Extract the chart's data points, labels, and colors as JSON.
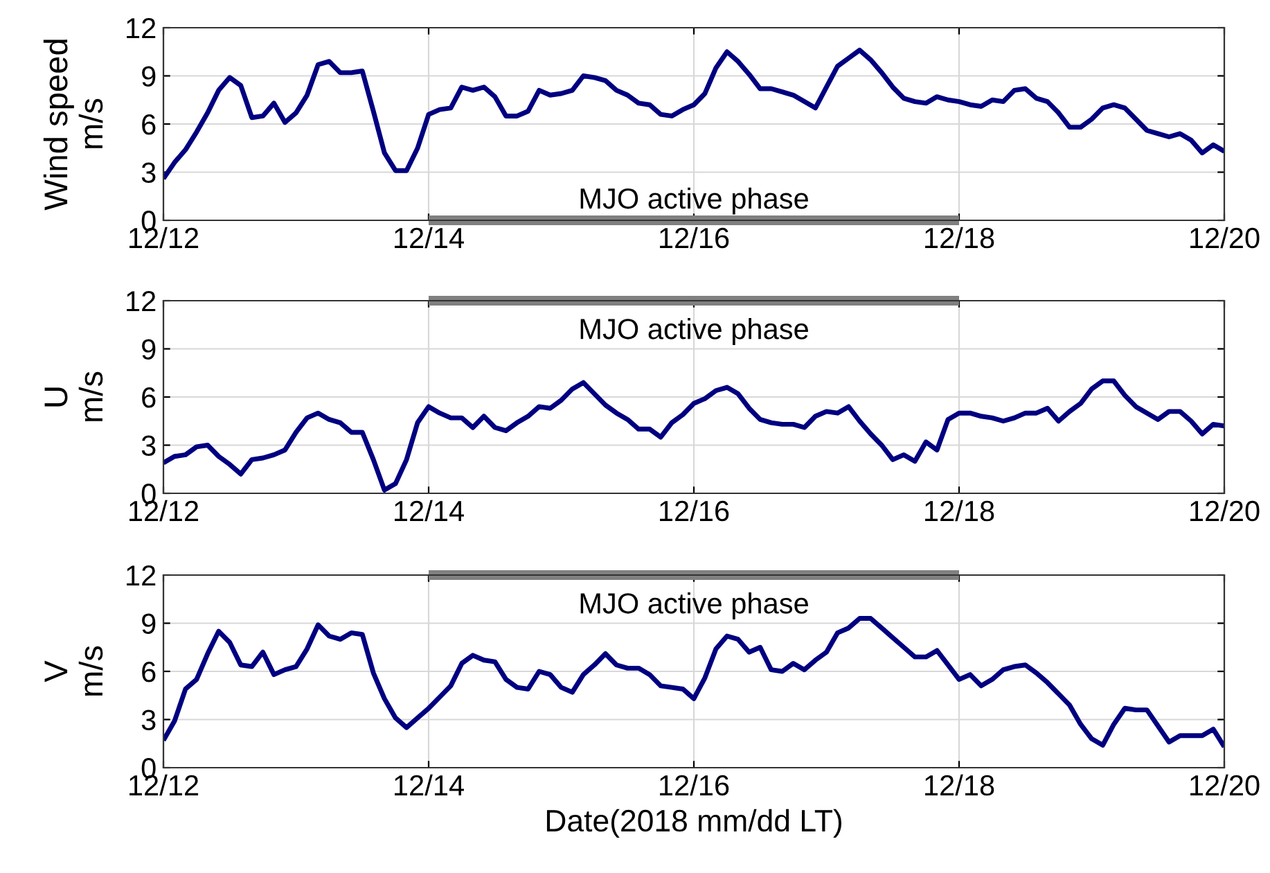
{
  "chart_data": [
    {
      "type": "line",
      "ylabel": "Wind speed\nm/s",
      "x": [
        "2018-12-12T00:00",
        "2018-12-12T02:00",
        "2018-12-12T04:00",
        "2018-12-12T06:00",
        "2018-12-12T08:00",
        "2018-12-12T10:00",
        "2018-12-12T12:00",
        "2018-12-12T14:00",
        "2018-12-12T16:00",
        "2018-12-12T18:00",
        "2018-12-12T20:00",
        "2018-12-12T22:00",
        "2018-12-13T00:00",
        "2018-12-13T02:00",
        "2018-12-13T04:00",
        "2018-12-13T06:00",
        "2018-12-13T08:00",
        "2018-12-13T10:00",
        "2018-12-13T12:00",
        "2018-12-13T14:00",
        "2018-12-13T16:00",
        "2018-12-13T18:00",
        "2018-12-13T20:00",
        "2018-12-13T22:00",
        "2018-12-14T00:00",
        "2018-12-14T02:00",
        "2018-12-14T04:00",
        "2018-12-14T06:00",
        "2018-12-14T08:00",
        "2018-12-14T10:00",
        "2018-12-14T12:00",
        "2018-12-14T14:00",
        "2018-12-14T16:00",
        "2018-12-14T18:00",
        "2018-12-14T20:00",
        "2018-12-14T22:00",
        "2018-12-15T00:00",
        "2018-12-15T02:00",
        "2018-12-15T04:00",
        "2018-12-15T06:00",
        "2018-12-15T08:00",
        "2018-12-15T10:00",
        "2018-12-15T12:00",
        "2018-12-15T14:00",
        "2018-12-15T16:00",
        "2018-12-15T18:00",
        "2018-12-15T20:00",
        "2018-12-15T22:00",
        "2018-12-16T00:00",
        "2018-12-16T02:00",
        "2018-12-16T04:00",
        "2018-12-16T06:00",
        "2018-12-16T08:00",
        "2018-12-16T10:00",
        "2018-12-16T12:00",
        "2018-12-16T14:00",
        "2018-12-16T16:00",
        "2018-12-16T18:00",
        "2018-12-16T20:00",
        "2018-12-16T22:00",
        "2018-12-17T00:00",
        "2018-12-17T02:00",
        "2018-12-17T04:00",
        "2018-12-17T06:00",
        "2018-12-17T08:00",
        "2018-12-17T10:00",
        "2018-12-17T12:00",
        "2018-12-17T14:00",
        "2018-12-17T16:00",
        "2018-12-17T18:00",
        "2018-12-17T20:00",
        "2018-12-17T22:00",
        "2018-12-18T00:00",
        "2018-12-18T02:00",
        "2018-12-18T04:00",
        "2018-12-18T06:00",
        "2018-12-18T08:00",
        "2018-12-18T10:00",
        "2018-12-18T12:00",
        "2018-12-18T14:00",
        "2018-12-18T16:00",
        "2018-12-18T18:00",
        "2018-12-18T20:00",
        "2018-12-18T22:00",
        "2018-12-19T00:00",
        "2018-12-19T02:00",
        "2018-12-19T04:00",
        "2018-12-19T06:00",
        "2018-12-19T08:00",
        "2018-12-19T10:00",
        "2018-12-19T12:00",
        "2018-12-19T14:00",
        "2018-12-19T16:00",
        "2018-12-19T18:00",
        "2018-12-19T20:00",
        "2018-12-19T22:00",
        "2018-12-20T00:00"
      ],
      "series": [
        {
          "type": "line",
          "name": "MJO active phase",
          "color": "#808080",
          "x": [
            "2018-12-14",
            "2018-12-18"
          ],
          "values": [
            0,
            0
          ]
        },
        {
          "color": "#000080",
          "values": [
            2.6,
            3.6,
            4.4,
            5.5,
            6.7,
            8.1,
            8.9,
            8.4,
            6.4,
            6.5,
            7.3,
            6.1,
            6.7,
            7.8,
            9.7,
            9.9,
            9.2,
            9.2,
            9.3,
            6.8,
            4.2,
            3.1,
            3.1,
            4.5,
            6.6,
            6.9,
            7.0,
            8.3,
            8.1,
            8.3,
            7.7,
            6.5,
            6.5,
            6.8,
            8.1,
            7.8,
            7.9,
            8.1,
            9.0,
            8.9,
            8.7,
            8.1,
            7.8,
            7.3,
            7.2,
            6.6,
            6.5,
            6.9,
            7.2,
            7.9,
            9.5,
            10.5,
            9.9,
            9.1,
            8.2,
            8.2,
            8.0,
            7.8,
            7.4,
            7.0,
            8.3,
            9.6,
            10.1,
            10.6,
            10.0,
            9.2,
            8.3,
            7.6,
            7.4,
            7.3,
            7.7,
            7.5,
            7.4,
            7.2,
            7.1,
            7.5,
            7.4,
            8.1,
            8.2,
            7.6,
            7.4,
            6.7,
            5.8,
            5.8,
            6.3,
            7.0,
            7.2,
            7.0,
            6.3,
            5.6,
            5.4,
            5.2,
            5.4,
            5.0,
            4.2,
            4.7,
            4.3
          ]
        }
      ],
      "xlim": [
        "2018-12-12",
        "2018-12-20"
      ],
      "xticks": [
        {
          "value": "2018-12-12",
          "label": "12/12"
        },
        {
          "value": "2018-12-14",
          "label": "12/14"
        },
        {
          "value": "2018-12-16",
          "label": "12/16"
        },
        {
          "value": "2018-12-18",
          "label": "12/18"
        },
        {
          "value": "2018-12-20",
          "label": "12/20"
        }
      ],
      "ylim": [
        0,
        12
      ],
      "yticks": [
        0,
        3,
        6,
        9,
        12
      ],
      "grid": true,
      "line_style": "solid",
      "marker": "none"
    },
    {
      "type": "line",
      "ylabel": "U\nm/s",
      "x": [
        "2018-12-12T00:00",
        "2018-12-12T02:00",
        "2018-12-12T04:00",
        "2018-12-12T06:00",
        "2018-12-12T08:00",
        "2018-12-12T10:00",
        "2018-12-12T12:00",
        "2018-12-12T14:00",
        "2018-12-12T16:00",
        "2018-12-12T18:00",
        "2018-12-12T20:00",
        "2018-12-12T22:00",
        "2018-12-13T00:00",
        "2018-12-13T02:00",
        "2018-12-13T04:00",
        "2018-12-13T06:00",
        "2018-12-13T08:00",
        "2018-12-13T10:00",
        "2018-12-13T12:00",
        "2018-12-13T14:00",
        "2018-12-13T16:00",
        "2018-12-13T18:00",
        "2018-12-13T20:00",
        "2018-12-13T22:00",
        "2018-12-14T00:00",
        "2018-12-14T02:00",
        "2018-12-14T04:00",
        "2018-12-14T06:00",
        "2018-12-14T08:00",
        "2018-12-14T10:00",
        "2018-12-14T12:00",
        "2018-12-14T14:00",
        "2018-12-14T16:00",
        "2018-12-14T18:00",
        "2018-12-14T20:00",
        "2018-12-14T22:00",
        "2018-12-15T00:00",
        "2018-12-15T02:00",
        "2018-12-15T04:00",
        "2018-12-15T06:00",
        "2018-12-15T08:00",
        "2018-12-15T10:00",
        "2018-12-15T12:00",
        "2018-12-15T14:00",
        "2018-12-15T16:00",
        "2018-12-15T18:00",
        "2018-12-15T20:00",
        "2018-12-15T22:00",
        "2018-12-16T00:00",
        "2018-12-16T02:00",
        "2018-12-16T04:00",
        "2018-12-16T06:00",
        "2018-12-16T08:00",
        "2018-12-16T10:00",
        "2018-12-16T12:00",
        "2018-12-16T14:00",
        "2018-12-16T16:00",
        "2018-12-16T18:00",
        "2018-12-16T20:00",
        "2018-12-16T22:00",
        "2018-12-17T00:00",
        "2018-12-17T02:00",
        "2018-12-17T04:00",
        "2018-12-17T06:00",
        "2018-12-17T08:00",
        "2018-12-17T10:00",
        "2018-12-17T12:00",
        "2018-12-17T14:00",
        "2018-12-17T16:00",
        "2018-12-17T18:00",
        "2018-12-17T20:00",
        "2018-12-17T22:00",
        "2018-12-18T00:00",
        "2018-12-18T02:00",
        "2018-12-18T04:00",
        "2018-12-18T06:00",
        "2018-12-18T08:00",
        "2018-12-18T10:00",
        "2018-12-18T12:00",
        "2018-12-18T14:00",
        "2018-12-18T16:00",
        "2018-12-18T18:00",
        "2018-12-18T20:00",
        "2018-12-18T22:00",
        "2018-12-19T00:00",
        "2018-12-19T02:00",
        "2018-12-19T04:00",
        "2018-12-19T06:00",
        "2018-12-19T08:00",
        "2018-12-19T10:00",
        "2018-12-19T12:00",
        "2018-12-19T14:00",
        "2018-12-19T16:00",
        "2018-12-19T18:00",
        "2018-12-19T20:00",
        "2018-12-19T22:00",
        "2018-12-20T00:00"
      ],
      "series": [
        {
          "type": "line",
          "name": "MJO active phase",
          "color": "#808080",
          "x": [
            "2018-12-14",
            "2018-12-18"
          ],
          "values": [
            12,
            12
          ]
        },
        {
          "color": "#000080",
          "values": [
            1.9,
            2.3,
            2.4,
            2.9,
            3.0,
            2.3,
            1.8,
            1.2,
            2.1,
            2.2,
            2.4,
            2.7,
            3.8,
            4.7,
            5.0,
            4.6,
            4.4,
            3.8,
            3.8,
            2.1,
            0.2,
            0.6,
            2.1,
            4.4,
            5.4,
            5.0,
            4.7,
            4.7,
            4.1,
            4.8,
            4.1,
            3.9,
            4.4,
            4.8,
            5.4,
            5.3,
            5.8,
            6.5,
            6.9,
            6.2,
            5.5,
            5.0,
            4.6,
            4.0,
            4.0,
            3.5,
            4.4,
            4.9,
            5.6,
            5.9,
            6.4,
            6.6,
            6.2,
            5.3,
            4.6,
            4.4,
            4.3,
            4.3,
            4.1,
            4.8,
            5.1,
            5.0,
            5.4,
            4.5,
            3.7,
            3.0,
            2.1,
            2.4,
            2.0,
            3.2,
            2.7,
            4.6,
            5.0,
            5.0,
            4.8,
            4.7,
            4.5,
            4.7,
            5.0,
            5.0,
            5.3,
            4.5,
            5.1,
            5.6,
            6.5,
            7.0,
            7.0,
            6.1,
            5.4,
            5.0,
            4.6,
            5.1,
            5.1,
            4.5,
            3.7,
            4.3,
            4.2
          ]
        }
      ],
      "xlim": [
        "2018-12-12",
        "2018-12-20"
      ],
      "xticks": [
        {
          "value": "2018-12-12",
          "label": "12/12"
        },
        {
          "value": "2018-12-14",
          "label": "12/14"
        },
        {
          "value": "2018-12-16",
          "label": "12/16"
        },
        {
          "value": "2018-12-18",
          "label": "12/18"
        },
        {
          "value": "2018-12-20",
          "label": "12/20"
        }
      ],
      "ylim": [
        0,
        12
      ],
      "yticks": [
        0,
        3,
        6,
        9,
        12
      ],
      "grid": true,
      "line_style": "solid",
      "marker": "none"
    },
    {
      "type": "line",
      "ylabel": "V\nm/s",
      "xlabel": "Date(2018 mm/dd LT)",
      "x": [
        "2018-12-12T00:00",
        "2018-12-12T02:00",
        "2018-12-12T04:00",
        "2018-12-12T06:00",
        "2018-12-12T08:00",
        "2018-12-12T10:00",
        "2018-12-12T12:00",
        "2018-12-12T14:00",
        "2018-12-12T16:00",
        "2018-12-12T18:00",
        "2018-12-12T20:00",
        "2018-12-12T22:00",
        "2018-12-13T00:00",
        "2018-12-13T02:00",
        "2018-12-13T04:00",
        "2018-12-13T06:00",
        "2018-12-13T08:00",
        "2018-12-13T10:00",
        "2018-12-13T12:00",
        "2018-12-13T14:00",
        "2018-12-13T16:00",
        "2018-12-13T18:00",
        "2018-12-13T20:00",
        "2018-12-13T22:00",
        "2018-12-14T00:00",
        "2018-12-14T02:00",
        "2018-12-14T04:00",
        "2018-12-14T06:00",
        "2018-12-14T08:00",
        "2018-12-14T10:00",
        "2018-12-14T12:00",
        "2018-12-14T14:00",
        "2018-12-14T16:00",
        "2018-12-14T18:00",
        "2018-12-14T20:00",
        "2018-12-14T22:00",
        "2018-12-15T00:00",
        "2018-12-15T02:00",
        "2018-12-15T04:00",
        "2018-12-15T06:00",
        "2018-12-15T08:00",
        "2018-12-15T10:00",
        "2018-12-15T12:00",
        "2018-12-15T14:00",
        "2018-12-15T16:00",
        "2018-12-15T18:00",
        "2018-12-15T20:00",
        "2018-12-15T22:00",
        "2018-12-16T00:00",
        "2018-12-16T02:00",
        "2018-12-16T04:00",
        "2018-12-16T06:00",
        "2018-12-16T08:00",
        "2018-12-16T10:00",
        "2018-12-16T12:00",
        "2018-12-16T14:00",
        "2018-12-16T16:00",
        "2018-12-16T18:00",
        "2018-12-16T20:00",
        "2018-12-16T22:00",
        "2018-12-17T00:00",
        "2018-12-17T02:00",
        "2018-12-17T04:00",
        "2018-12-17T06:00",
        "2018-12-17T08:00",
        "2018-12-17T10:00",
        "2018-12-17T12:00",
        "2018-12-17T14:00",
        "2018-12-17T16:00",
        "2018-12-17T18:00",
        "2018-12-17T20:00",
        "2018-12-17T22:00",
        "2018-12-18T00:00",
        "2018-12-18T02:00",
        "2018-12-18T04:00",
        "2018-12-18T06:00",
        "2018-12-18T08:00",
        "2018-12-18T10:00",
        "2018-12-18T12:00",
        "2018-12-18T14:00",
        "2018-12-18T16:00",
        "2018-12-18T18:00",
        "2018-12-18T20:00",
        "2018-12-18T22:00",
        "2018-12-19T00:00",
        "2018-12-19T02:00",
        "2018-12-19T04:00",
        "2018-12-19T06:00",
        "2018-12-19T08:00",
        "2018-12-19T10:00",
        "2018-12-19T12:00",
        "2018-12-19T14:00",
        "2018-12-19T16:00",
        "2018-12-19T18:00",
        "2018-12-19T20:00",
        "2018-12-19T22:00",
        "2018-12-20T00:00"
      ],
      "series": [
        {
          "type": "line",
          "name": "MJO active phase",
          "color": "#808080",
          "x": [
            "2018-12-14",
            "2018-12-18"
          ],
          "values": [
            12,
            12
          ]
        },
        {
          "color": "#000080",
          "values": [
            1.7,
            2.9,
            4.9,
            5.5,
            7.1,
            8.5,
            7.8,
            6.4,
            6.3,
            7.2,
            5.8,
            6.1,
            6.3,
            7.4,
            8.9,
            8.2,
            8.0,
            8.4,
            8.3,
            5.9,
            4.3,
            3.1,
            2.5,
            3.1,
            3.7,
            4.4,
            5.1,
            6.5,
            7.0,
            6.7,
            6.6,
            5.5,
            5.0,
            4.9,
            6.0,
            5.8,
            5.0,
            4.7,
            5.8,
            6.4,
            7.1,
            6.4,
            6.2,
            6.2,
            5.8,
            5.1,
            5.0,
            4.9,
            4.3,
            5.6,
            7.4,
            8.2,
            8.0,
            7.2,
            7.5,
            6.1,
            6.0,
            6.5,
            6.1,
            6.7,
            7.2,
            8.4,
            8.7,
            9.3,
            9.3,
            8.7,
            8.1,
            7.5,
            6.9,
            6.9,
            7.3,
            6.4,
            5.5,
            5.8,
            5.1,
            5.5,
            6.1,
            6.3,
            6.4,
            5.9,
            5.3,
            4.6,
            3.9,
            2.7,
            1.8,
            1.4,
            2.7,
            3.7,
            3.6,
            3.6,
            2.6,
            1.6,
            2.0,
            2.0,
            2.0,
            2.4,
            1.3
          ]
        }
      ],
      "xlim": [
        "2018-12-12",
        "2018-12-20"
      ],
      "xticks": [
        {
          "value": "2018-12-12",
          "label": "12/12"
        },
        {
          "value": "2018-12-14",
          "label": "12/14"
        },
        {
          "value": "2018-12-16",
          "label": "12/16"
        },
        {
          "value": "2018-12-18",
          "label": "12/18"
        },
        {
          "value": "2018-12-20",
          "label": "12/20"
        }
      ],
      "ylim": [
        0,
        12
      ],
      "yticks": [
        0,
        3,
        6,
        9,
        12
      ],
      "grid": true,
      "line_style": "solid",
      "marker": "none"
    }
  ]
}
